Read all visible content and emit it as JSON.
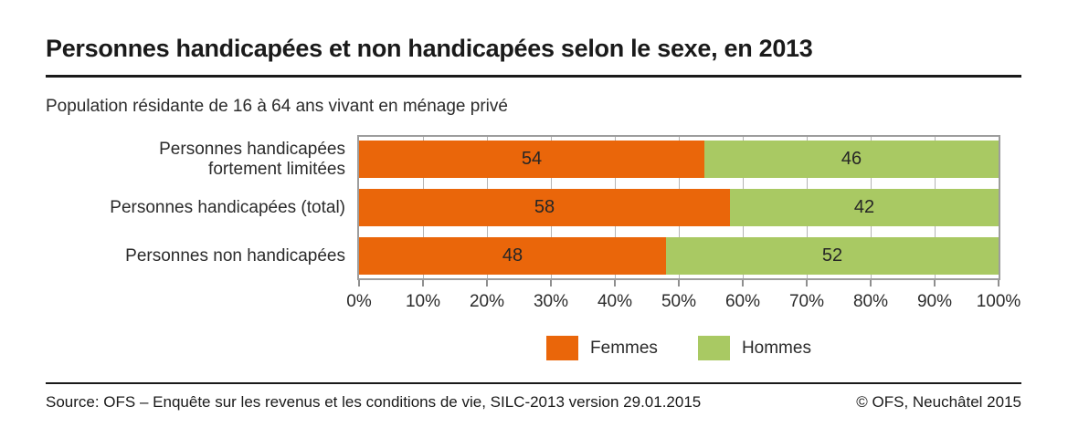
{
  "header": {
    "title": "Personnes handicapées et non handicapées selon le sexe, en 2013",
    "subtitle": "Population résidante de 16 à 64 ans vivant en ménage privé"
  },
  "chart_data": {
    "type": "bar",
    "orientation": "horizontal",
    "stacked": true,
    "unit": "%",
    "title": "Personnes handicapées et non handicapées selon le sexe, en 2013",
    "subtitle": "Population résidante de 16 à 64 ans vivant en ménage privé",
    "categories": [
      "Personnes handicapées fortement limitées",
      "Personnes handicapées (total)",
      "Personnes non handicapées"
    ],
    "category_label_lines": [
      [
        "Personnes handicapées",
        "fortement limitées"
      ],
      [
        "Personnes handicapées (total)",
        ""
      ],
      [
        "Personnes non handicapées",
        ""
      ]
    ],
    "series": [
      {
        "name": "Femmes",
        "color": "#EA660A",
        "values": [
          54,
          58,
          48
        ]
      },
      {
        "name": "Hommes",
        "color": "#A9C963",
        "values": [
          46,
          42,
          52
        ]
      }
    ],
    "x_axis": {
      "min": 0,
      "max": 100,
      "tick_step": 10,
      "tick_labels": [
        "0%",
        "10%",
        "20%",
        "30%",
        "40%",
        "50%",
        "60%",
        "70%",
        "80%",
        "90%",
        "100%"
      ]
    },
    "grid": true,
    "legend_position": "bottom-center"
  },
  "footer": {
    "source": "Source: OFS – Enquête sur les revenus et les conditions de vie, SILC-2013 version 29.01.2015",
    "copyright": "© OFS, Neuchâtel 2015"
  },
  "colors": {
    "femmes": "#EA660A",
    "hommes": "#A9C963",
    "plot_border": "#9D9D9D",
    "gridline": "#B4B4B4",
    "tick": "#8F8F8F",
    "rule": "#1A1A1A",
    "text": "#2B2B2B"
  }
}
